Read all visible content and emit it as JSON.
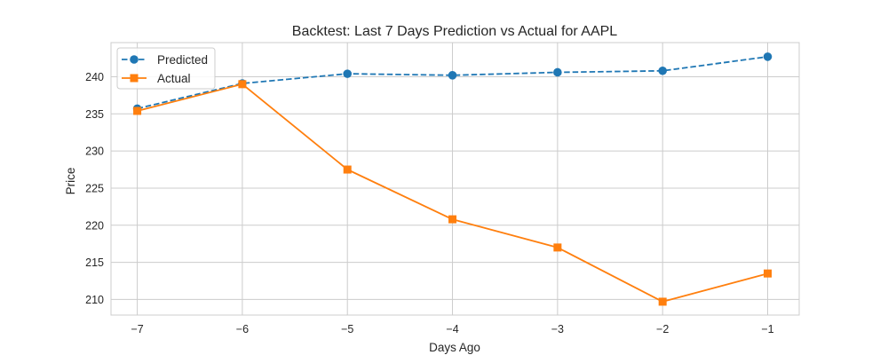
{
  "chart_data": {
    "type": "line",
    "title": "Backtest: Last 7 Days Prediction vs Actual for AAPL",
    "xlabel": "Days Ago",
    "ylabel": "Price",
    "x": [
      -7,
      -6,
      -5,
      -4,
      -3,
      -2,
      -1
    ],
    "x_tick_labels": [
      "−7",
      "−6",
      "−5",
      "−4",
      "−3",
      "−2",
      "−1"
    ],
    "y_ticks": [
      210,
      215,
      220,
      225,
      230,
      235,
      240
    ],
    "xlim": [
      -7.25,
      -0.7
    ],
    "ylim": [
      207.9,
      244.6
    ],
    "grid": true,
    "legend_position": "top-left",
    "series": [
      {
        "name": "Predicted",
        "values": [
          235.7,
          239.1,
          240.4,
          240.2,
          240.6,
          240.8,
          242.7
        ],
        "color": "#1f77b4",
        "line_style": "dashed",
        "marker": "circle"
      },
      {
        "name": "Actual",
        "values": [
          235.4,
          239.0,
          227.5,
          220.8,
          217.0,
          209.7,
          213.5
        ],
        "color": "#ff7f0e",
        "line_style": "solid",
        "marker": "square"
      }
    ]
  }
}
